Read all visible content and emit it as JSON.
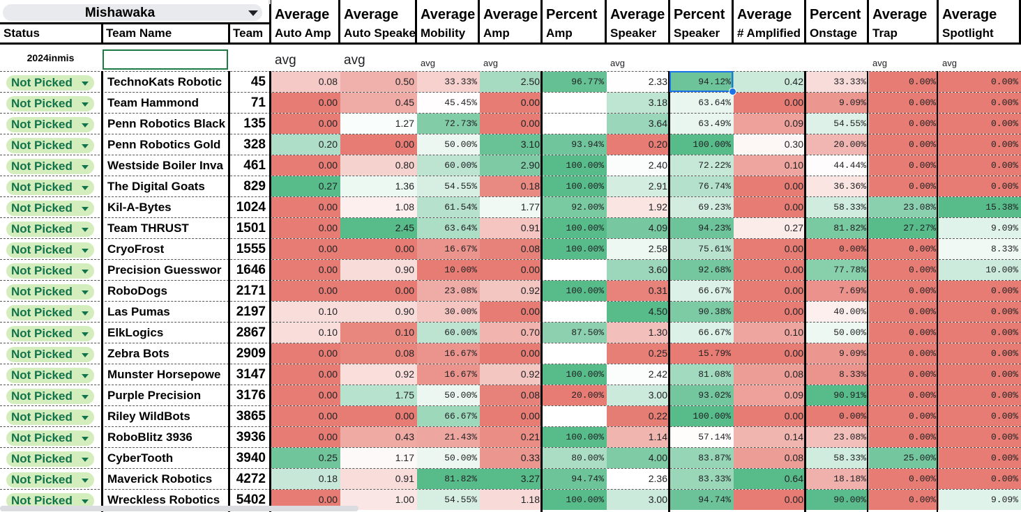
{
  "event_selector": {
    "value": "Mishawaka"
  },
  "headers": {
    "status": "Status",
    "team_name": "Team Name",
    "team": "Team",
    "columns": [
      {
        "l1": "Average",
        "l2": "Auto Amp"
      },
      {
        "l1": "Average",
        "l2": "Auto Speake"
      },
      {
        "l1": "Average",
        "l2": "Mobility"
      },
      {
        "l1": "Average",
        "l2": "Amp"
      },
      {
        "l1": "Percent",
        "l2": "Amp"
      },
      {
        "l1": "Average",
        "l2": "Speaker"
      },
      {
        "l1": "Percent",
        "l2": "Speaker"
      },
      {
        "l1": "Average",
        "l2": "# Amplified"
      },
      {
        "l1": "Percent",
        "l2": "Onstage"
      },
      {
        "l1": "Average",
        "l2": "Trap"
      },
      {
        "l1": "Average",
        "l2": "Spotlight"
      }
    ]
  },
  "filter_row": {
    "event_code": "2024inmis",
    "team_name_filter": "",
    "labels": [
      "avg",
      "avg",
      "avg",
      "avg",
      "",
      "avg",
      "",
      "",
      "",
      "avg",
      "avg"
    ]
  },
  "status_label": "Not Picked",
  "colors": {
    "red": "#e67c73",
    "green": "#57bb8a",
    "white": "#ffffff",
    "chip_bg": "#d4edbc",
    "chip_text": "#11734b",
    "selection": "#1a73e8"
  },
  "rows": [
    {
      "name": "TechnoKats Robotic",
      "team": "45",
      "v": [
        "0.08",
        "0.50",
        "33.33%",
        "2.50",
        "96.77%",
        "2.33",
        "94.12%",
        "0.42",
        "33.33%",
        "0.00%",
        "0.00%"
      ]
    },
    {
      "name": "Team Hammond",
      "team": "71",
      "v": [
        "0.00",
        "0.45",
        "45.45%",
        "0.00",
        "",
        "3.18",
        "63.64%",
        "0.00",
        "9.09%",
        "0.00%",
        "0.00%"
      ]
    },
    {
      "name": "Penn Robotics Black",
      "team": "135",
      "v": [
        "0.00",
        "1.27",
        "72.73%",
        "0.00",
        "",
        "3.64",
        "63.49%",
        "0.09",
        "54.55%",
        "0.00%",
        "0.00%"
      ]
    },
    {
      "name": "Penn Robotics Gold",
      "team": "328",
      "v": [
        "0.20",
        "0.00",
        "50.00%",
        "3.10",
        "93.94%",
        "0.20",
        "100.00%",
        "0.30",
        "20.00%",
        "0.00%",
        "0.00%"
      ]
    },
    {
      "name": "Westside Boiler Inva",
      "team": "461",
      "v": [
        "0.00",
        "0.80",
        "60.00%",
        "2.90",
        "100.00%",
        "2.40",
        "72.22%",
        "0.10",
        "44.44%",
        "0.00%",
        "0.00%"
      ]
    },
    {
      "name": "The Digital Goats",
      "team": "829",
      "v": [
        "0.27",
        "1.36",
        "54.55%",
        "0.18",
        "100.00%",
        "2.91",
        "76.74%",
        "0.00",
        "36.36%",
        "0.00%",
        "0.00%"
      ]
    },
    {
      "name": "Kil-A-Bytes",
      "team": "1024",
      "v": [
        "0.00",
        "1.08",
        "61.54%",
        "1.77",
        "92.00%",
        "1.92",
        "69.23%",
        "0.00",
        "58.33%",
        "23.08%",
        "15.38%"
      ]
    },
    {
      "name": "Team THRUST",
      "team": "1501",
      "v": [
        "0.00",
        "2.45",
        "63.64%",
        "0.91",
        "100.00%",
        "4.09",
        "94.23%",
        "0.27",
        "81.82%",
        "27.27%",
        "9.09%"
      ]
    },
    {
      "name": "CryoFrost",
      "team": "1555",
      "v": [
        "0.00",
        "0.00",
        "16.67%",
        "0.08",
        "100.00%",
        "2.58",
        "75.61%",
        "0.00",
        "0.00%",
        "0.00%",
        "8.33%"
      ]
    },
    {
      "name": "Precision Guesswor",
      "team": "1646",
      "v": [
        "0.00",
        "0.90",
        "10.00%",
        "0.00",
        "",
        "3.60",
        "92.68%",
        "0.00",
        "77.78%",
        "0.00%",
        "10.00%"
      ]
    },
    {
      "name": "RoboDogs",
      "team": "2171",
      "v": [
        "0.00",
        "0.00",
        "23.08%",
        "0.92",
        "100.00%",
        "0.31",
        "66.67%",
        "0.00",
        "7.69%",
        "0.00%",
        "0.00%"
      ]
    },
    {
      "name": "Las Pumas",
      "team": "2197",
      "v": [
        "0.10",
        "0.90",
        "30.00%",
        "0.00",
        "",
        "4.50",
        "90.38%",
        "0.00",
        "40.00%",
        "0.00%",
        "0.00%"
      ]
    },
    {
      "name": "ElkLogics",
      "team": "2867",
      "v": [
        "0.10",
        "0.10",
        "60.00%",
        "0.70",
        "87.50%",
        "1.30",
        "66.67%",
        "0.10",
        "50.00%",
        "0.00%",
        "0.00%"
      ]
    },
    {
      "name": "Zebra Bots",
      "team": "2909",
      "v": [
        "0.00",
        "0.08",
        "16.67%",
        "0.00",
        "",
        "0.25",
        "15.79%",
        "0.00",
        "9.09%",
        "0.00%",
        "0.00%"
      ]
    },
    {
      "name": "Munster Horsepowe",
      "team": "3147",
      "v": [
        "0.00",
        "0.92",
        "16.67%",
        "0.92",
        "100.00%",
        "2.42",
        "81.08%",
        "0.08",
        "8.33%",
        "0.00%",
        "0.00%"
      ]
    },
    {
      "name": "Purple Precision",
      "team": "3176",
      "v": [
        "0.00",
        "1.75",
        "50.00%",
        "0.08",
        "20.00%",
        "3.00",
        "93.02%",
        "0.09",
        "90.91%",
        "0.00%",
        "0.00%"
      ]
    },
    {
      "name": "Riley WildBots",
      "team": "3865",
      "v": [
        "0.00",
        "0.00",
        "66.67%",
        "0.00",
        "",
        "0.22",
        "100.00%",
        "0.00",
        "0.00%",
        "0.00%",
        "0.00%"
      ]
    },
    {
      "name": "RoboBlitz 3936",
      "team": "3936",
      "v": [
        "0.00",
        "0.43",
        "21.43%",
        "0.21",
        "100.00%",
        "1.14",
        "57.14%",
        "0.14",
        "23.08%",
        "0.00%",
        "0.00%"
      ]
    },
    {
      "name": "CyberTooth",
      "team": "3940",
      "v": [
        "0.25",
        "1.17",
        "50.00%",
        "0.33",
        "80.00%",
        "4.00",
        "83.87%",
        "0.08",
        "58.33%",
        "25.00%",
        "0.00%"
      ]
    },
    {
      "name": "Maverick Robotics",
      "team": "4272",
      "v": [
        "0.18",
        "0.91",
        "81.82%",
        "3.27",
        "94.74%",
        "2.36",
        "83.33%",
        "0.64",
        "18.18%",
        "0.00%",
        "0.00%"
      ]
    },
    {
      "name": "Wreckless Robotics",
      "team": "5402",
      "v": [
        "0.00",
        "1.00",
        "54.55%",
        "1.18",
        "100.00%",
        "3.00",
        "94.74%",
        "0.00",
        "90.00%",
        "0.00%",
        "9.09%"
      ]
    }
  ]
}
